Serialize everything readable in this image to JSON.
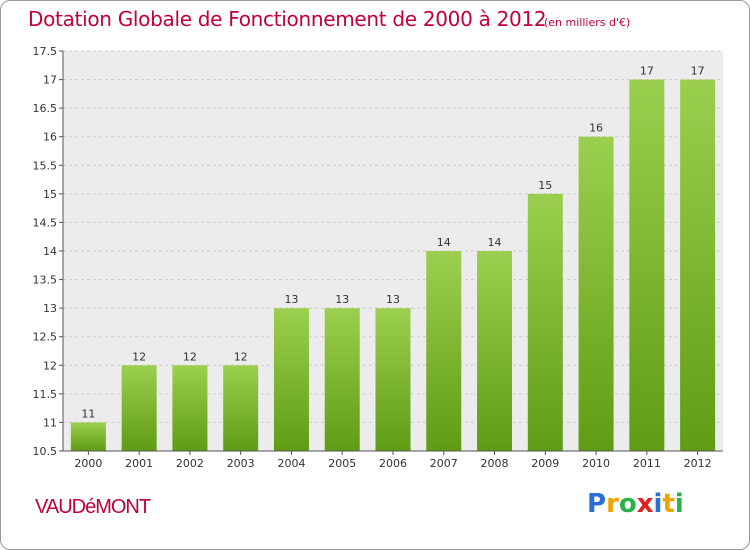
{
  "title": "Dotation Globale de Fonctionnement de 2000 à 2012",
  "unit_note": "(en milliers d'€)",
  "commune": "VAUDéMONT",
  "logo": {
    "letters": [
      "P",
      "r",
      "o",
      "x",
      "i",
      "t",
      "i"
    ],
    "colors": [
      "#2b6fd6",
      "#f0a400",
      "#2bb04a",
      "#e02020",
      "#2b6fd6",
      "#f0a400",
      "#2bb04a"
    ]
  },
  "chart_data": {
    "type": "bar",
    "categories": [
      "2000",
      "2001",
      "2002",
      "2003",
      "2004",
      "2005",
      "2006",
      "2007",
      "2008",
      "2009",
      "2010",
      "2011",
      "2012"
    ],
    "values": [
      11,
      12,
      12,
      12,
      13,
      13,
      13,
      14,
      14,
      15,
      16,
      17,
      17
    ],
    "value_labels": [
      "11",
      "12",
      "12",
      "12",
      "13",
      "13",
      "13",
      "14",
      "14",
      "15",
      "16",
      "17",
      "17"
    ],
    "ylim": [
      10.5,
      17.5
    ],
    "yticks": [
      10.5,
      11,
      11.5,
      12,
      12.5,
      13,
      13.5,
      14,
      14.5,
      15,
      15.5,
      16,
      16.5,
      17,
      17.5
    ],
    "ytick_labels": [
      "10.5",
      "11",
      "11.5",
      "12",
      "12.5",
      "13",
      "13.5",
      "14",
      "14.5",
      "15",
      "15.5",
      "16",
      "16.5",
      "17",
      "17.5"
    ],
    "grid": true,
    "colors": {
      "bar_top": "#9ccf4f",
      "bar_bottom": "#5f9c14",
      "grid": "#cccccc",
      "plot_bg": "#ececec"
    }
  }
}
